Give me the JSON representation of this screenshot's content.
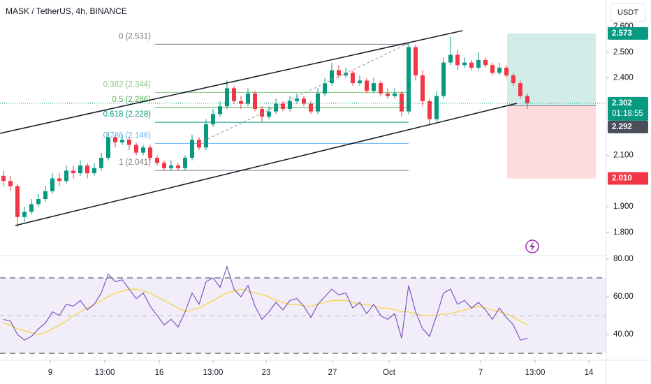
{
  "chart_data": {
    "type": "candlestick",
    "title": "MASK / TetherUS, 4h, BINANCE",
    "currency": "USDT",
    "colors": {
      "up": "#089981",
      "down": "#f23645"
    },
    "open": [
      2.02,
      2.0,
      1.98,
      1.86,
      1.88,
      1.91,
      1.93,
      1.96,
      2.01,
      2.0,
      2.04,
      2.03,
      2.06,
      2.03,
      2.05,
      2.09,
      2.17,
      2.15,
      2.16,
      2.14,
      2.11,
      2.13,
      2.09,
      2.07,
      2.05,
      2.06,
      2.05,
      2.09,
      2.16,
      2.13,
      2.22,
      2.26,
      2.29,
      2.36,
      2.31,
      2.3,
      2.34,
      2.28,
      2.25,
      2.27,
      2.3,
      2.28,
      2.31,
      2.32,
      2.3,
      2.27,
      2.34,
      2.38,
      2.43,
      2.41,
      2.42,
      2.38,
      2.39,
      2.35,
      2.38,
      2.34,
      2.33,
      2.34,
      2.27,
      2.52,
      2.41,
      2.31,
      2.24,
      2.33,
      2.46,
      2.49,
      2.45,
      2.46,
      2.44,
      2.47,
      2.45,
      2.42,
      2.44,
      2.41,
      2.38,
      2.33
    ],
    "high": [
      2.04,
      2.02,
      1.99,
      1.9,
      1.93,
      1.95,
      1.98,
      2.03,
      2.03,
      2.06,
      2.06,
      2.08,
      2.07,
      2.07,
      2.11,
      2.19,
      2.18,
      2.18,
      2.17,
      2.15,
      2.14,
      2.14,
      2.1,
      2.08,
      2.08,
      2.07,
      2.1,
      2.18,
      2.17,
      2.24,
      2.28,
      2.31,
      2.39,
      2.37,
      2.33,
      2.36,
      2.35,
      2.29,
      2.29,
      2.32,
      2.31,
      2.33,
      2.34,
      2.33,
      2.31,
      2.36,
      2.4,
      2.46,
      2.45,
      2.44,
      2.43,
      2.41,
      2.4,
      2.4,
      2.39,
      2.36,
      2.36,
      2.35,
      2.54,
      2.53,
      2.43,
      2.32,
      2.35,
      2.48,
      2.56,
      2.51,
      2.48,
      2.47,
      2.5,
      2.48,
      2.46,
      2.46,
      2.45,
      2.42,
      2.39,
      2.34
    ],
    "low": [
      1.98,
      1.96,
      1.82,
      1.84,
      1.87,
      1.9,
      1.92,
      1.95,
      1.98,
      1.99,
      2.01,
      2.02,
      2.01,
      2.02,
      2.04,
      2.08,
      2.13,
      2.14,
      2.12,
      2.1,
      2.1,
      2.08,
      2.06,
      2.04,
      2.04,
      2.04,
      2.04,
      2.08,
      2.12,
      2.12,
      2.21,
      2.25,
      2.28,
      2.3,
      2.28,
      2.29,
      2.27,
      2.23,
      2.24,
      2.26,
      2.27,
      2.27,
      2.3,
      2.29,
      2.26,
      2.26,
      2.33,
      2.37,
      2.4,
      2.4,
      2.37,
      2.37,
      2.34,
      2.34,
      2.33,
      2.32,
      2.32,
      2.25,
      2.26,
      2.39,
      2.29,
      2.22,
      2.23,
      2.32,
      2.45,
      2.43,
      2.44,
      2.43,
      2.43,
      2.44,
      2.41,
      2.41,
      2.4,
      2.37,
      2.32,
      2.28
    ],
    "close": [
      2.0,
      1.98,
      1.86,
      1.88,
      1.91,
      1.93,
      1.96,
      2.01,
      2.0,
      2.04,
      2.03,
      2.06,
      2.03,
      2.05,
      2.09,
      2.17,
      2.15,
      2.16,
      2.14,
      2.11,
      2.13,
      2.09,
      2.07,
      2.05,
      2.06,
      2.05,
      2.09,
      2.16,
      2.13,
      2.22,
      2.26,
      2.29,
      2.36,
      2.31,
      2.3,
      2.34,
      2.28,
      2.25,
      2.27,
      2.3,
      2.28,
      2.31,
      2.32,
      2.3,
      2.27,
      2.34,
      2.38,
      2.43,
      2.41,
      2.42,
      2.38,
      2.39,
      2.35,
      2.38,
      2.34,
      2.33,
      2.34,
      2.27,
      2.52,
      2.41,
      2.31,
      2.24,
      2.33,
      2.46,
      2.49,
      2.45,
      2.46,
      2.44,
      2.47,
      2.45,
      2.42,
      2.44,
      2.41,
      2.38,
      2.33,
      2.302
    ],
    "xlim": [
      -0.5,
      86.3
    ],
    "xticks": [
      {
        "value": 6.7,
        "label": "9"
      },
      {
        "value": 14.5,
        "label": "13:00"
      },
      {
        "value": 22.3,
        "label": "16"
      },
      {
        "value": 30,
        "label": "13:00"
      },
      {
        "value": 37.6,
        "label": "23"
      },
      {
        "value": 47.1,
        "label": "27"
      },
      {
        "value": 55.2,
        "label": "Oct"
      },
      {
        "value": 68.3,
        "label": "7"
      },
      {
        "value": 76.1,
        "label": "13:00"
      },
      {
        "value": 83.8,
        "label": "14"
      }
    ],
    "ylim": [
      1.713,
      2.703
    ],
    "yticks": [
      {
        "value": 1.8,
        "label": "1.800"
      },
      {
        "value": 1.9,
        "label": "1.900"
      },
      {
        "value": 2.1,
        "label": "2.100"
      },
      {
        "value": 2.4,
        "label": "2.400"
      },
      {
        "value": 2.5,
        "label": "2.500"
      },
      {
        "value": 2.6,
        "label": "2.600"
      }
    ],
    "last_price": {
      "value": 2.302,
      "label": "2.302",
      "countdown": "01:18:55"
    },
    "position": {
      "target": {
        "value": 2.573,
        "label": "2.573",
        "color": "#089981"
      },
      "entry": {
        "value": 2.292,
        "label": "2.292",
        "color": "#4a4e5a"
      },
      "stop": {
        "value": 2.01,
        "label": "2.010",
        "color": "#f23645"
      }
    },
    "fibonacci": [
      {
        "value": 2.531,
        "label": "0 (2.531)",
        "color": "#787b86"
      },
      {
        "value": 2.344,
        "label": "0.382 (2.344)",
        "color": "#81c784"
      },
      {
        "value": 2.286,
        "label": "0.5 (2.286)",
        "color": "#4caf50"
      },
      {
        "value": 2.228,
        "label": "0.618 (2.228)",
        "color": "#089981"
      },
      {
        "value": 2.146,
        "label": "0.786 (2.146)",
        "color": "#64b5f6"
      },
      {
        "value": 2.041,
        "label": "1 (2.041)",
        "color": "#787b86"
      }
    ],
    "rsi": {
      "ylim": [
        26.7,
        81.1
      ],
      "yticks": [
        {
          "value": 80,
          "label": "80.00"
        },
        {
          "value": 60,
          "label": "60.00"
        },
        {
          "value": 40,
          "label": "40.00"
        }
      ],
      "upper": 70,
      "middle": 50,
      "lower": 30,
      "color": "#7e57c2",
      "values": [
        48,
        47,
        40,
        37,
        39,
        43,
        46,
        52,
        50,
        56,
        55,
        58,
        53,
        56,
        62,
        72,
        68,
        69,
        64,
        59,
        62,
        55,
        50,
        45,
        48,
        44,
        52,
        62,
        56,
        68,
        70,
        65,
        76,
        64,
        60,
        66,
        55,
        48,
        52,
        57,
        53,
        58,
        59,
        55,
        49,
        56,
        60,
        64,
        61,
        62,
        54,
        57,
        51,
        56,
        50,
        48,
        51,
        38,
        66,
        52,
        43,
        39,
        50,
        62,
        64,
        56,
        58,
        54,
        57,
        53,
        48,
        54,
        49,
        45,
        37,
        38
      ],
      "ma_color": "#f5d547",
      "ma_values": [
        46,
        45,
        43,
        42,
        41,
        40,
        41,
        43,
        45,
        47,
        50,
        52,
        54,
        56,
        58,
        60,
        62,
        63,
        64,
        64,
        63,
        62,
        60,
        58,
        56,
        54,
        52,
        53,
        54,
        56,
        58,
        60,
        62,
        63,
        64,
        63,
        62,
        61,
        60,
        58,
        57,
        56,
        56,
        55,
        55,
        56,
        57,
        58,
        58,
        58,
        57,
        56,
        56,
        55,
        54,
        54,
        53,
        52,
        52,
        51,
        50,
        50,
        50,
        51,
        51,
        52,
        53,
        54,
        55,
        54,
        53,
        52,
        51,
        49,
        47,
        45
      ]
    }
  }
}
